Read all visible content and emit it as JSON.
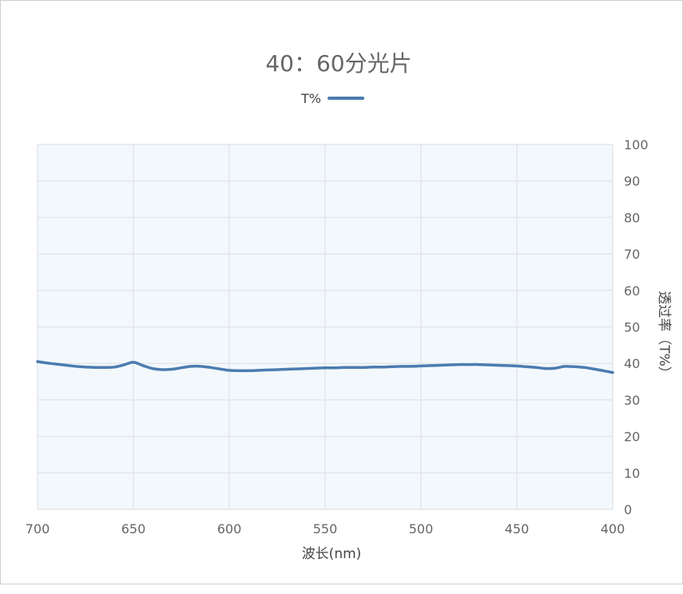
{
  "chart_data": {
    "type": "line",
    "title": "40：60分光片",
    "legend": {
      "position": "top-center",
      "entries": [
        "T%"
      ]
    },
    "xlabel": "波长(nm)",
    "ylabel": "透过率（T%）",
    "x_reversed": true,
    "y_axis_side": "right",
    "xlim": [
      400,
      700
    ],
    "ylim": [
      0,
      100
    ],
    "x_ticks": [
      400,
      450,
      500,
      550,
      600,
      650,
      700
    ],
    "y_ticks": [
      0,
      10,
      20,
      30,
      40,
      50,
      60,
      70,
      80,
      90,
      100
    ],
    "grid": true,
    "colors": {
      "line": "#4a7cb0",
      "plot_background": "#f3f8fc",
      "grid": "#e3e6ea",
      "title": "#666666",
      "text": "#666666",
      "axis_label": "#444444"
    },
    "series": [
      {
        "name": "T%",
        "x": [
          400,
          405,
          410,
          415,
          420,
          425,
          430,
          435,
          440,
          445,
          450,
          455,
          460,
          465,
          470,
          475,
          480,
          485,
          490,
          495,
          500,
          505,
          510,
          515,
          520,
          525,
          530,
          535,
          540,
          545,
          550,
          555,
          560,
          565,
          570,
          575,
          580,
          585,
          590,
          595,
          600,
          605,
          610,
          615,
          620,
          625,
          630,
          635,
          640,
          645,
          650,
          655,
          660,
          665,
          670,
          675,
          680,
          685,
          690,
          695,
          700
        ],
        "y": [
          37.5,
          38.0,
          38.5,
          38.9,
          39.1,
          39.2,
          38.7,
          38.6,
          38.9,
          39.1,
          39.3,
          39.4,
          39.5,
          39.6,
          39.7,
          39.7,
          39.7,
          39.6,
          39.5,
          39.4,
          39.3,
          39.2,
          39.2,
          39.1,
          39.0,
          39.0,
          38.9,
          38.9,
          38.9,
          38.8,
          38.8,
          38.7,
          38.6,
          38.5,
          38.4,
          38.3,
          38.2,
          38.1,
          38.0,
          38.0,
          38.1,
          38.5,
          38.9,
          39.2,
          39.2,
          38.8,
          38.4,
          38.3,
          38.6,
          39.4,
          40.3,
          39.6,
          39.0,
          38.9,
          38.9,
          39.0,
          39.2,
          39.5,
          39.8,
          40.1,
          40.5
        ]
      }
    ]
  }
}
